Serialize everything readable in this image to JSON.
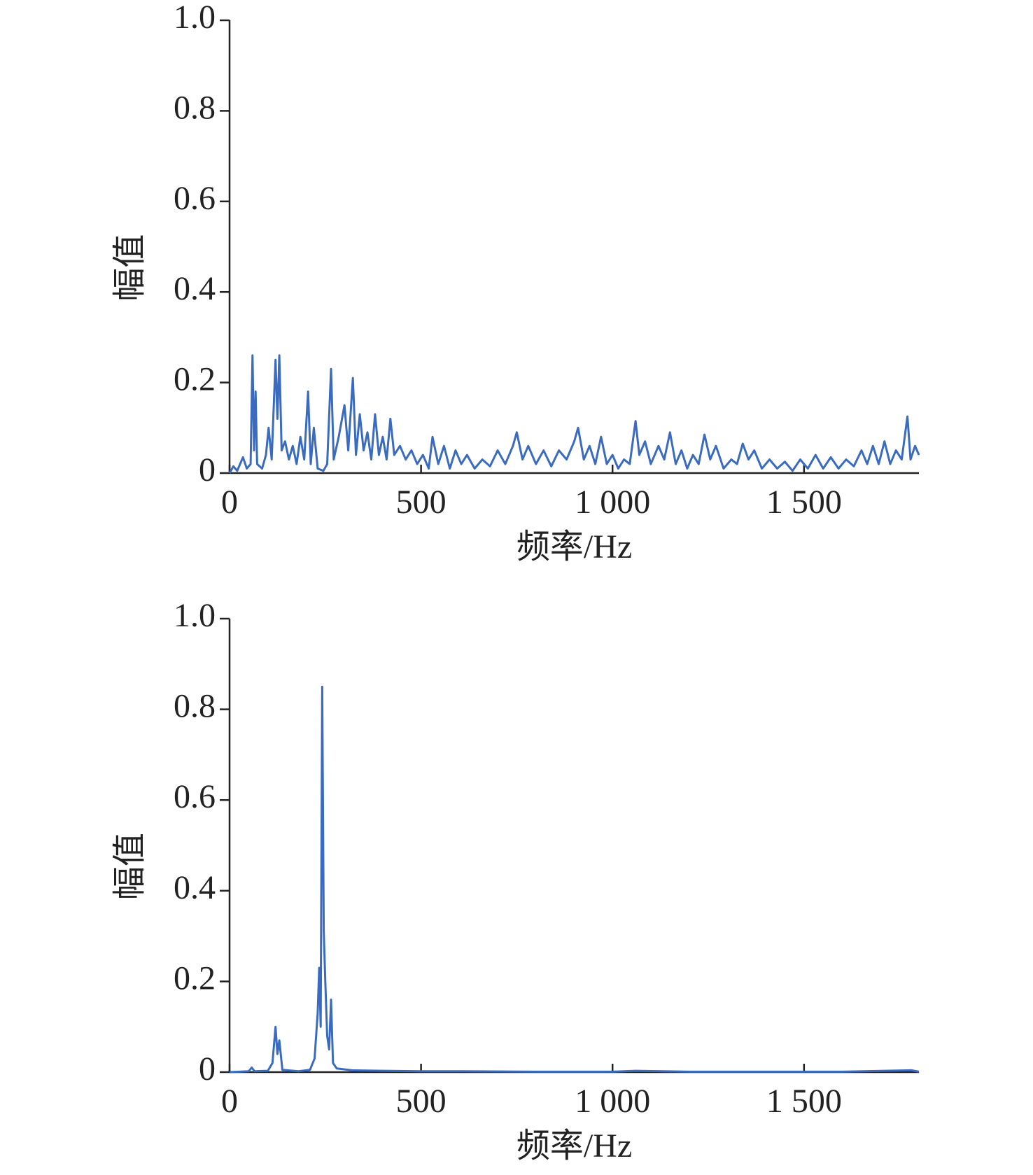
{
  "chart_data": [
    {
      "type": "line",
      "xlabel": "频率/Hz",
      "ylabel": "幅值",
      "xlim": [
        0,
        1800
      ],
      "ylim": [
        0,
        1
      ],
      "xticks": [
        0,
        500,
        {
          "value": 1000,
          "label": "1 000"
        },
        {
          "value": 1500,
          "label": "1 500"
        }
      ],
      "yticks": [
        0,
        0.2,
        0.4,
        0.6,
        0.8,
        {
          "value": 1,
          "label": "1.0"
        }
      ],
      "grid": false,
      "series": [
        {
          "color": "#3a6bbf",
          "x": [
            0,
            10,
            20,
            35,
            45,
            55,
            60,
            64,
            68,
            72,
            85,
            95,
            102,
            110,
            120,
            125,
            130,
            136,
            145,
            155,
            165,
            175,
            185,
            195,
            205,
            212,
            220,
            230,
            245,
            255,
            265,
            272,
            285,
            300,
            310,
            322,
            330,
            340,
            350,
            360,
            370,
            380,
            390,
            400,
            410,
            420,
            430,
            445,
            460,
            475,
            490,
            505,
            520,
            530,
            545,
            560,
            575,
            590,
            605,
            620,
            640,
            660,
            680,
            700,
            720,
            740,
            750,
            765,
            780,
            800,
            820,
            840,
            860,
            880,
            900,
            910,
            925,
            940,
            955,
            970,
            985,
            1000,
            1015,
            1030,
            1045,
            1060,
            1070,
            1085,
            1100,
            1120,
            1135,
            1150,
            1165,
            1180,
            1195,
            1210,
            1225,
            1240,
            1255,
            1270,
            1290,
            1310,
            1325,
            1340,
            1355,
            1370,
            1390,
            1410,
            1430,
            1450,
            1470,
            1490,
            1510,
            1530,
            1550,
            1570,
            1590,
            1610,
            1630,
            1650,
            1665,
            1680,
            1695,
            1710,
            1725,
            1740,
            1755,
            1770,
            1778,
            1790,
            1800
          ],
          "values": [
            0,
            0.015,
            0.005,
            0.035,
            0.01,
            0.02,
            0.26,
            0.05,
            0.18,
            0.02,
            0.01,
            0.04,
            0.1,
            0.03,
            0.25,
            0.12,
            0.26,
            0.05,
            0.07,
            0.03,
            0.06,
            0.02,
            0.08,
            0.03,
            0.18,
            0.02,
            0.1,
            0.01,
            0.005,
            0.02,
            0.23,
            0.03,
            0.08,
            0.15,
            0.05,
            0.21,
            0.04,
            0.13,
            0.05,
            0.09,
            0.03,
            0.13,
            0.04,
            0.08,
            0.03,
            0.12,
            0.04,
            0.06,
            0.03,
            0.05,
            0.02,
            0.04,
            0.01,
            0.08,
            0.02,
            0.06,
            0.01,
            0.05,
            0.02,
            0.04,
            0.01,
            0.03,
            0.015,
            0.05,
            0.02,
            0.06,
            0.09,
            0.03,
            0.06,
            0.02,
            0.05,
            0.015,
            0.05,
            0.03,
            0.07,
            0.1,
            0.03,
            0.06,
            0.02,
            0.08,
            0.02,
            0.04,
            0.01,
            0.03,
            0.02,
            0.115,
            0.04,
            0.07,
            0.02,
            0.06,
            0.03,
            0.09,
            0.02,
            0.05,
            0.01,
            0.04,
            0.02,
            0.085,
            0.03,
            0.06,
            0.01,
            0.03,
            0.02,
            0.065,
            0.03,
            0.05,
            0.01,
            0.03,
            0.01,
            0.025,
            0.005,
            0.03,
            0.01,
            0.04,
            0.01,
            0.035,
            0.01,
            0.03,
            0.015,
            0.05,
            0.02,
            0.06,
            0.02,
            0.07,
            0.02,
            0.05,
            0.03,
            0.125,
            0.03,
            0.06,
            0.04
          ]
        }
      ]
    },
    {
      "type": "line",
      "xlabel": "频率/Hz",
      "ylabel": "幅值",
      "xlim": [
        0,
        1800
      ],
      "ylim": [
        0,
        1
      ],
      "xticks": [
        0,
        500,
        {
          "value": 1000,
          "label": "1 000"
        },
        {
          "value": 1500,
          "label": "1 500"
        }
      ],
      "yticks": [
        0,
        0.2,
        0.4,
        0.6,
        0.8,
        {
          "value": 1,
          "label": "1.0"
        }
      ],
      "grid": false,
      "series": [
        {
          "color": "#3a6bbf",
          "x": [
            0,
            50,
            58,
            65,
            100,
            112,
            120,
            125,
            130,
            138,
            180,
            210,
            222,
            230,
            234,
            238,
            242,
            246,
            250,
            255,
            260,
            265,
            270,
            280,
            320,
            400,
            500,
            600,
            800,
            1000,
            1060,
            1200,
            1400,
            1600,
            1780,
            1800
          ],
          "values": [
            0,
            0.002,
            0.01,
            0.002,
            0.003,
            0.02,
            0.1,
            0.04,
            0.07,
            0.005,
            0.002,
            0.005,
            0.03,
            0.13,
            0.23,
            0.1,
            0.85,
            0.31,
            0.2,
            0.08,
            0.05,
            0.16,
            0.02,
            0.008,
            0.004,
            0.003,
            0.002,
            0.002,
            0.001,
            0.001,
            0.003,
            0.001,
            0.001,
            0.001,
            0.004,
            0.001
          ]
        }
      ]
    }
  ]
}
